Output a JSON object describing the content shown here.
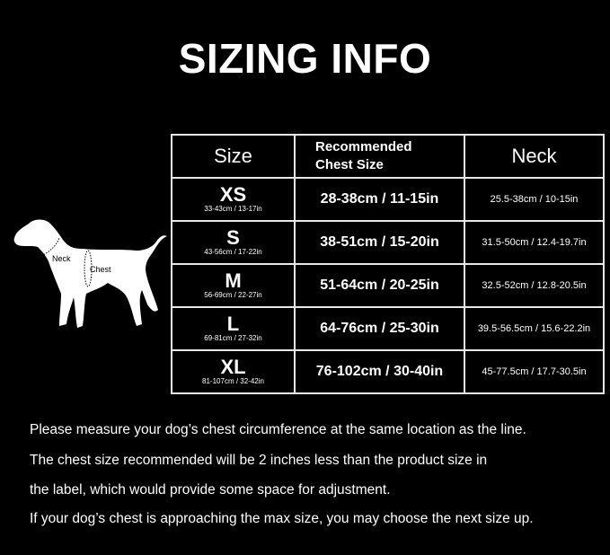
{
  "title": "SIZING INFO",
  "headers": {
    "size": "Size",
    "chest": "Recommended\nChest Size",
    "neck": "Neck"
  },
  "rows": [
    {
      "size": "XS",
      "product": "33-43cm / 13-17in",
      "chest": "28-38cm / 11-15in",
      "neck": "25.5-38cm / 10-15in"
    },
    {
      "size": "S",
      "product": "43-56cm / 17-22in",
      "chest": "38-51cm / 15-20in",
      "neck": "31.5-50cm / 12.4-19.7in"
    },
    {
      "size": "M",
      "product": "56-69cm / 22-27in",
      "chest": "51-64cm / 20-25in",
      "neck": "32.5-52cm / 12.8-20.5in"
    },
    {
      "size": "L",
      "product": "69-81cm / 27-32in",
      "chest": "64-76cm / 25-30in",
      "neck": "39.5-56.5cm / 15.6-22.2in"
    },
    {
      "size": "XL",
      "product": "81-107cm / 32-42in",
      "chest": "76-102cm / 30-40in",
      "neck": "45-77.5cm / 17.7-30.5in"
    }
  ],
  "dog": {
    "neck_label": "Neck",
    "chest_label": "Chest"
  },
  "notes": [
    "Please measure your dog’s chest circumference at the same location as the line.",
    "The chest size recommended will be 2 inches less than the product size in",
    "the label, which would provide some space for adjustment.",
    "If your dog’s chest is approaching the max size, you may choose the next size up."
  ]
}
